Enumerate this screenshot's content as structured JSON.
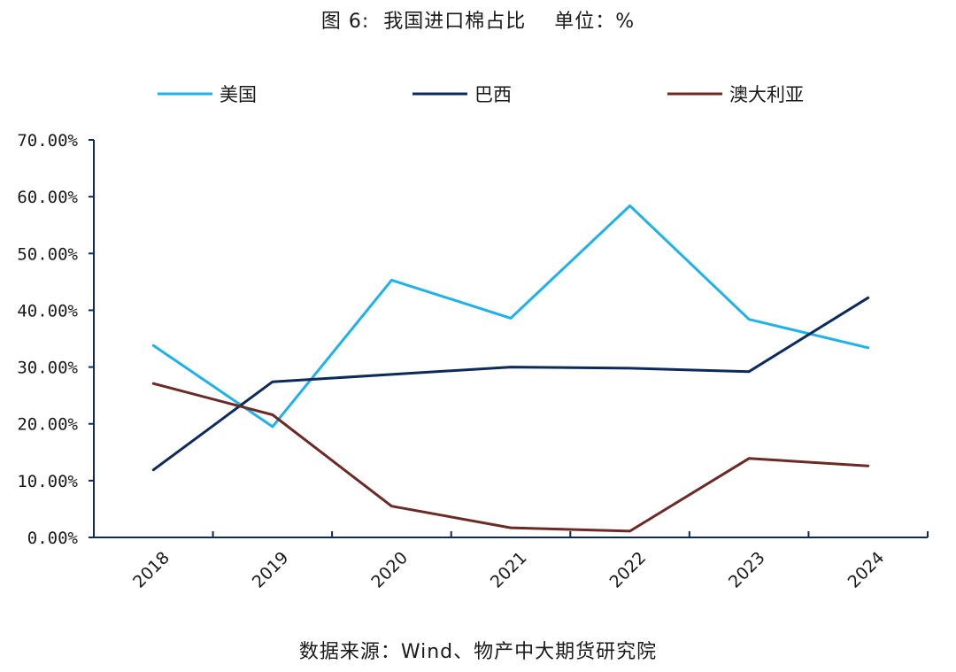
{
  "title": "图 6:  我国进口棉占比    单位：%",
  "source": "数据来源：Wind、物产中大期货研究院",
  "chart_data": {
    "type": "line",
    "x": [
      "2018",
      "2019",
      "2020",
      "2021",
      "2022",
      "2023",
      "2024"
    ],
    "ylim": [
      0,
      70
    ],
    "yticks": [
      "0.00%",
      "10.00%",
      "20.00%",
      "30.00%",
      "40.00%",
      "50.00%",
      "60.00%",
      "70.00%"
    ],
    "legend_position": "top",
    "grid": false,
    "series": [
      {
        "name": "美国",
        "color": "#1fb1ea",
        "values": [
          33.8,
          19.5,
          45.3,
          38.6,
          58.4,
          38.4,
          33.4
        ]
      },
      {
        "name": "巴西",
        "color": "#0d2a5c",
        "values": [
          11.9,
          27.4,
          28.7,
          30.0,
          29.8,
          29.2,
          42.2
        ]
      },
      {
        "name": "澳大利亚",
        "color": "#6b2a26",
        "values": [
          27.1,
          21.6,
          5.5,
          1.7,
          1.1,
          13.9,
          12.6
        ]
      }
    ]
  }
}
